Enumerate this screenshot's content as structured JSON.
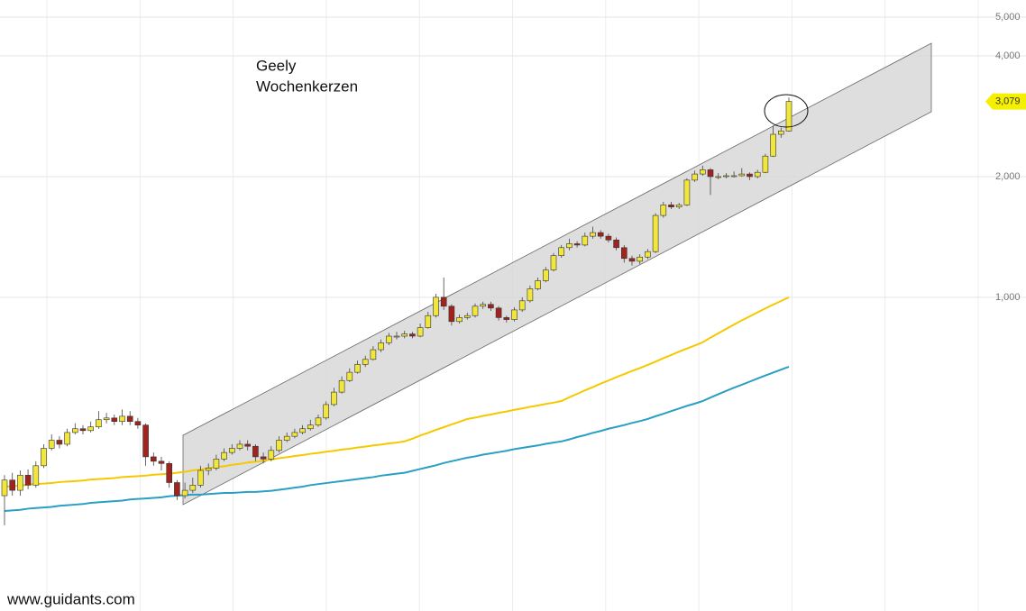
{
  "chart_data": {
    "type": "candlestick",
    "title": "Geely",
    "subtitle": "Wochenkerzen",
    "source": "www.guidants.com",
    "log_scale": true,
    "grid": true,
    "up_color": "#f0e63c",
    "down_color": "#a0231e",
    "ylim": [
      165,
      5515
    ],
    "yticks": [
      {
        "value": 1000,
        "label": "1,000"
      },
      {
        "value": 2000,
        "label": "2,000"
      },
      {
        "value": 4000,
        "label": "4,000"
      },
      {
        "value": 5000,
        "label": "5,000"
      }
    ],
    "price_marker": {
      "value": 3079,
      "label": "3,079",
      "color": "#f5f000"
    },
    "categories": [
      null,
      null,
      null,
      null,
      null,
      null,
      null,
      null,
      null,
      null,
      null,
      null,
      null,
      null,
      null,
      null,
      null,
      null,
      null,
      null,
      null,
      null,
      null,
      null,
      null,
      null,
      null,
      null,
      null,
      null,
      null,
      null,
      null,
      null,
      null,
      null,
      null,
      null,
      null,
      null,
      null,
      null,
      null,
      null,
      null,
      null,
      null,
      null,
      null,
      null,
      null,
      null,
      null,
      null,
      null,
      null,
      null,
      null,
      null,
      null,
      null,
      null,
      null,
      null,
      null,
      null,
      null,
      null,
      null,
      null,
      null,
      null,
      null,
      null,
      null,
      null,
      null,
      null,
      null,
      null,
      null,
      null,
      null,
      null,
      null,
      null,
      null,
      null,
      null,
      null,
      null,
      null,
      null,
      null,
      null,
      null,
      null,
      null,
      null,
      null,
      null
    ],
    "open": [
      320,
      350,
      330,
      360,
      340,
      380,
      420,
      440,
      430,
      460,
      470,
      465,
      475,
      495,
      500,
      490,
      505,
      490,
      480,
      400,
      390,
      385,
      345,
      320,
      330,
      340,
      370,
      375,
      395,
      410,
      420,
      430,
      425,
      400,
      395,
      415,
      440,
      450,
      460,
      470,
      480,
      500,
      540,
      580,
      620,
      650,
      680,
      700,
      740,
      770,
      800,
      800,
      810,
      800,
      840,
      900,
      1000,
      950,
      870,
      890,
      900,
      950,
      960,
      940,
      890,
      880,
      930,
      980,
      1050,
      1100,
      1170,
      1270,
      1330,
      1360,
      1350,
      1420,
      1450,
      1420,
      1390,
      1330,
      1250,
      1230,
      1260,
      1300,
      1600,
      1700,
      1680,
      1700,
      1960,
      2030,
      2080,
      2000,
      2000,
      2010,
      2010,
      2030,
      2000,
      2050,
      2250,
      2550,
      2600
    ],
    "high": [
      360,
      365,
      370,
      372,
      390,
      430,
      455,
      450,
      470,
      485,
      480,
      490,
      520,
      515,
      510,
      525,
      520,
      500,
      485,
      410,
      400,
      390,
      350,
      345,
      355,
      380,
      385,
      405,
      420,
      430,
      440,
      440,
      430,
      410,
      425,
      450,
      460,
      470,
      480,
      495,
      510,
      550,
      595,
      635,
      665,
      695,
      715,
      755,
      785,
      815,
      820,
      825,
      820,
      860,
      920,
      1020,
      1120,
      960,
      905,
      915,
      965,
      975,
      975,
      950,
      900,
      945,
      1000,
      1070,
      1120,
      1190,
      1290,
      1350,
      1400,
      1380,
      1450,
      1500,
      1470,
      1440,
      1410,
      1350,
      1270,
      1280,
      1320,
      1620,
      1730,
      1730,
      1720,
      1980,
      2070,
      2130,
      2100,
      2040,
      2040,
      2060,
      2100,
      2050,
      2080,
      2280,
      2680,
      2650,
      3150
    ],
    "low": [
      270,
      320,
      320,
      332,
      335,
      375,
      415,
      420,
      425,
      455,
      455,
      460,
      470,
      485,
      480,
      480,
      480,
      470,
      380,
      380,
      370,
      335,
      312,
      315,
      325,
      335,
      360,
      370,
      390,
      405,
      415,
      415,
      390,
      385,
      390,
      410,
      435,
      445,
      455,
      465,
      475,
      495,
      535,
      575,
      615,
      645,
      670,
      695,
      730,
      760,
      785,
      790,
      790,
      795,
      835,
      890,
      930,
      850,
      860,
      880,
      890,
      935,
      925,
      875,
      865,
      870,
      920,
      970,
      1040,
      1090,
      1160,
      1255,
      1310,
      1330,
      1340,
      1400,
      1400,
      1370,
      1310,
      1220,
      1200,
      1210,
      1245,
      1290,
      1580,
      1660,
      1660,
      1690,
      1940,
      2010,
      1800,
      1970,
      1980,
      1990,
      2000,
      1960,
      1980,
      2040,
      2240,
      2500,
      2590
    ],
    "close": [
      350,
      330,
      360,
      340,
      380,
      420,
      440,
      430,
      460,
      470,
      465,
      475,
      495,
      500,
      490,
      505,
      490,
      480,
      400,
      390,
      385,
      345,
      320,
      330,
      340,
      370,
      375,
      395,
      410,
      420,
      430,
      425,
      400,
      395,
      415,
      440,
      450,
      460,
      470,
      480,
      500,
      540,
      580,
      620,
      650,
      680,
      700,
      740,
      770,
      800,
      800,
      810,
      800,
      840,
      900,
      1000,
      950,
      870,
      890,
      900,
      950,
      960,
      940,
      890,
      880,
      930,
      980,
      1050,
      1100,
      1170,
      1270,
      1330,
      1360,
      1350,
      1420,
      1450,
      1420,
      1390,
      1330,
      1250,
      1230,
      1260,
      1300,
      1600,
      1700,
      1680,
      1700,
      1960,
      2030,
      2080,
      2000,
      2000,
      2010,
      2010,
      2030,
      2000,
      2050,
      2250,
      2550,
      2600,
      3079
    ],
    "series": [
      {
        "color": "#f5c800",
        "values": [
          337,
          338,
          339,
          341,
          342,
          343,
          344,
          346,
          347,
          348,
          349,
          351,
          352,
          353,
          354,
          356,
          357,
          358,
          359,
          361,
          362,
          363,
          365,
          367,
          370,
          372,
          375,
          377,
          379,
          382,
          384,
          387,
          389,
          391,
          394,
          397,
          399,
          402,
          404,
          407,
          409,
          412,
          414,
          417,
          419,
          422,
          424,
          427,
          429,
          432,
          434,
          437,
          444,
          452,
          459,
          467,
          474,
          482,
          489,
          497,
          501,
          506,
          510,
          515,
          519,
          524,
          528,
          533,
          537,
          542,
          546,
          551,
          563,
          574,
          586,
          597,
          609,
          620,
          632,
          643,
          655,
          666,
          678,
          691,
          705,
          718,
          732,
          745,
          758,
          772,
          793,
          813,
          834,
          855,
          876,
          896,
          917,
          938,
          959,
          979,
          1000
        ]
      },
      {
        "color": "#2a9fc4",
        "values": [
          293,
          294,
          295,
          297,
          298,
          299,
          300,
          302,
          303,
          304,
          305,
          307,
          308,
          309,
          310,
          311,
          313,
          314,
          315,
          316,
          317,
          319,
          320,
          321,
          322,
          322,
          323,
          324,
          325,
          325,
          326,
          327,
          327,
          328,
          329,
          331,
          333,
          335,
          337,
          340,
          342,
          344,
          346,
          348,
          350,
          352,
          354,
          356,
          359,
          361,
          363,
          365,
          369,
          373,
          377,
          381,
          386,
          390,
          394,
          398,
          401,
          405,
          408,
          411,
          414,
          418,
          421,
          424,
          427,
          431,
          434,
          437,
          442,
          448,
          453,
          459,
          464,
          470,
          475,
          480,
          486,
          491,
          497,
          505,
          512,
          520,
          528,
          536,
          543,
          551,
          562,
          573,
          584,
          595,
          605,
          616,
          627,
          638,
          649,
          660,
          671
        ]
      }
    ]
  }
}
